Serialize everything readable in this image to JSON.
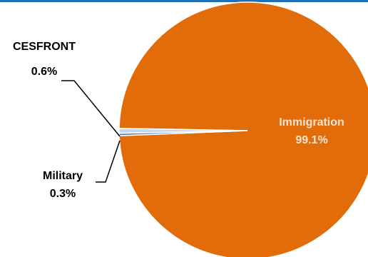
{
  "chart_data": {
    "type": "pie",
    "title": "",
    "slices": [
      {
        "label": "Immigration",
        "value": 99.1,
        "value_text": "99.1%",
        "color": "#e36c0a"
      },
      {
        "label": "Military",
        "value": 0.3,
        "value_text": "0.3%",
        "color": "#4a7ebb"
      },
      {
        "label": "CESFRONT",
        "value": 0.6,
        "value_text": "0.6%",
        "color": "#c6d6ea"
      }
    ],
    "legend": "none"
  },
  "colors": {
    "accent_rule": "#1f6fb4",
    "inside_label": "#fbe3cf",
    "outside_label": "#000000"
  }
}
